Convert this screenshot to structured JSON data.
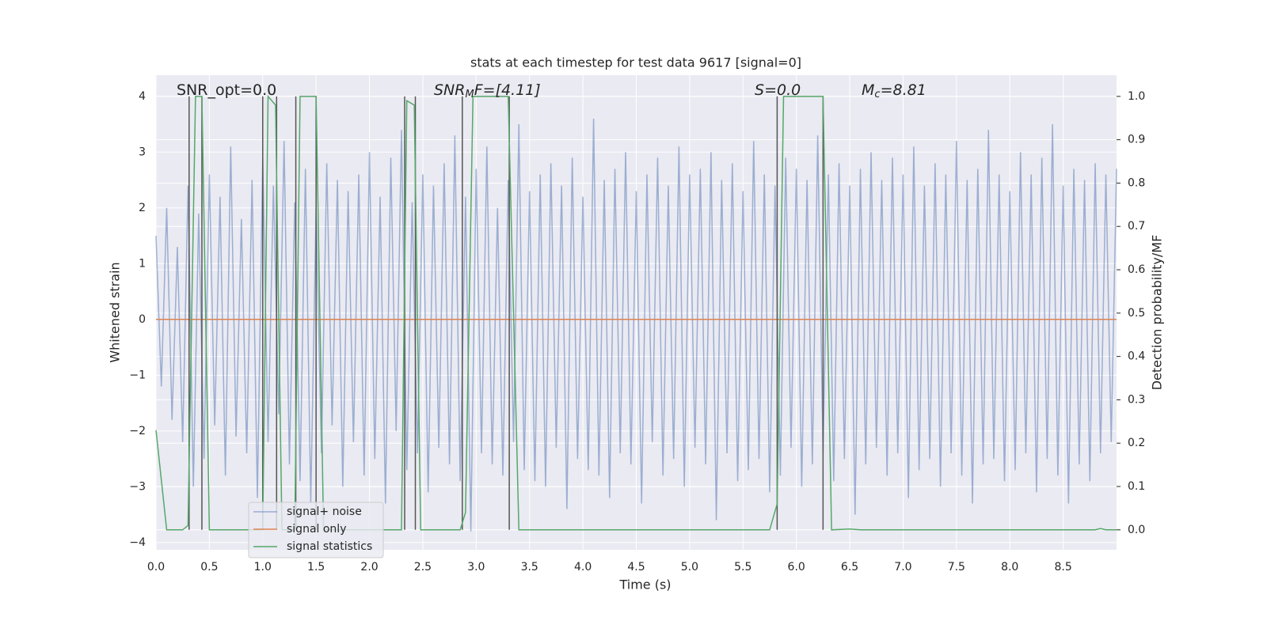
{
  "chart_data": {
    "type": "line",
    "title": "stats at each timestep for test data 9617 [signal=0]",
    "xlabel": "Time (s)",
    "ylabel": "Whitened strain",
    "y2label": "Detection probability/MF",
    "xlim": [
      0,
      9.0
    ],
    "ylim": [
      -4.13,
      4.38
    ],
    "y2lim": [
      -0.046,
      1.049
    ],
    "xticks": [
      {
        "value": 0,
        "label": "0.0"
      },
      {
        "value": 0.5,
        "label": "0.5"
      },
      {
        "value": 1,
        "label": "1.0"
      },
      {
        "value": 1.5,
        "label": "1.5"
      },
      {
        "value": 2,
        "label": "2.0"
      },
      {
        "value": 2.5,
        "label": "2.5"
      },
      {
        "value": 3,
        "label": "3.0"
      },
      {
        "value": 3.5,
        "label": "3.5"
      },
      {
        "value": 4,
        "label": "4.0"
      },
      {
        "value": 4.5,
        "label": "4.5"
      },
      {
        "value": 5,
        "label": "5.0"
      },
      {
        "value": 5.5,
        "label": "5.5"
      },
      {
        "value": 6,
        "label": "6.0"
      },
      {
        "value": 6.5,
        "label": "6.5"
      },
      {
        "value": 7,
        "label": "7.0"
      },
      {
        "value": 7.5,
        "label": "7.5"
      },
      {
        "value": 8,
        "label": "8.0"
      },
      {
        "value": 8.5,
        "label": "8.5"
      }
    ],
    "yticks": [
      {
        "value": -4,
        "label": "−4"
      },
      {
        "value": -3,
        "label": "−3"
      },
      {
        "value": -2,
        "label": "−2"
      },
      {
        "value": -1,
        "label": "−1"
      },
      0,
      1,
      2,
      3,
      4
    ],
    "y2ticks": [
      {
        "value": 0,
        "label": "0.0"
      },
      {
        "value": 0.1,
        "label": "0.1"
      },
      {
        "value": 0.2,
        "label": "0.2"
      },
      {
        "value": 0.3,
        "label": "0.3"
      },
      {
        "value": 0.4,
        "label": "0.4"
      },
      {
        "value": 0.5,
        "label": "0.5"
      },
      {
        "value": 0.6,
        "label": "0.6"
      },
      {
        "value": 0.7,
        "label": "0.7"
      },
      {
        "value": 0.8,
        "label": "0.8"
      },
      {
        "value": 0.9,
        "label": "0.9"
      },
      {
        "value": 1,
        "label": "1.0"
      }
    ],
    "grid": true,
    "series": [
      {
        "name": "signal+ noise",
        "color": "#4c72b0",
        "opacity": 0.5,
        "x": [
          0,
          0.05,
          0.1,
          0.15,
          0.2,
          0.25,
          0.3,
          0.35,
          0.4,
          0.45,
          0.5,
          0.55,
          0.6,
          0.65,
          0.7,
          0.75,
          0.8,
          0.85,
          0.9,
          0.95,
          1,
          1.05,
          1.1,
          1.15,
          1.2,
          1.25,
          1.3,
          1.35,
          1.4,
          1.45,
          1.5,
          1.55,
          1.6,
          1.65,
          1.7,
          1.75,
          1.8,
          1.85,
          1.9,
          1.95,
          2,
          2.05,
          2.1,
          2.15,
          2.2,
          2.25,
          2.3,
          2.35,
          2.4,
          2.45,
          2.5,
          2.55,
          2.6,
          2.65,
          2.7,
          2.75,
          2.8,
          2.85,
          2.9,
          2.95,
          3,
          3.05,
          3.1,
          3.15,
          3.2,
          3.25,
          3.3,
          3.35,
          3.4,
          3.45,
          3.5,
          3.55,
          3.6,
          3.65,
          3.7,
          3.75,
          3.8,
          3.85,
          3.9,
          3.95,
          4,
          4.05,
          4.1,
          4.15,
          4.2,
          4.25,
          4.3,
          4.35,
          4.4,
          4.45,
          4.5,
          4.55,
          4.6,
          4.65,
          4.7,
          4.75,
          4.8,
          4.85,
          4.9,
          4.95,
          5,
          5.05,
          5.1,
          5.15,
          5.2,
          5.25,
          5.3,
          5.35,
          5.4,
          5.45,
          5.5,
          5.55,
          5.6,
          5.65,
          5.7,
          5.75,
          5.8,
          5.85,
          5.9,
          5.95,
          6,
          6.05,
          6.1,
          6.15,
          6.2,
          6.25,
          6.3,
          6.35,
          6.4,
          6.45,
          6.5,
          6.55,
          6.6,
          6.65,
          6.7,
          6.75,
          6.8,
          6.85,
          6.9,
          6.95,
          7,
          7.05,
          7.1,
          7.15,
          7.2,
          7.25,
          7.3,
          7.35,
          7.4,
          7.45,
          7.5,
          7.55,
          7.6,
          7.65,
          7.7,
          7.75,
          7.8,
          7.85,
          7.9,
          7.95,
          8,
          8.05,
          8.1,
          8.15,
          8.2,
          8.25,
          8.3,
          8.35,
          8.4,
          8.45,
          8.5,
          8.55,
          8.6,
          8.65,
          8.7,
          8.75,
          8.8,
          8.85,
          8.9,
          8.95,
          9.0
        ],
        "values": [
          1.5,
          -1.2,
          2.0,
          -1.8,
          1.3,
          -2.2,
          2.4,
          -3.0,
          1.9,
          -2.5,
          2.6,
          -1.9,
          2.2,
          -2.8,
          3.1,
          -2.1,
          1.8,
          -2.4,
          2.5,
          -3.2,
          2.9,
          -2.2,
          2.4,
          -1.7,
          3.2,
          -2.6,
          2.1,
          -2.9,
          2.7,
          -3.3,
          2.0,
          -2.4,
          2.8,
          -1.9,
          2.5,
          -3.0,
          2.3,
          -2.2,
          2.6,
          -2.8,
          3.0,
          -2.5,
          2.2,
          -3.3,
          2.9,
          -2.0,
          3.4,
          -2.7,
          2.1,
          -2.4,
          2.6,
          -3.1,
          2.4,
          -2.3,
          2.8,
          -2.6,
          3.3,
          -2.9,
          2.2,
          -3.8,
          2.7,
          -2.4,
          3.1,
          -2.6,
          2.0,
          -2.8,
          2.5,
          -2.2,
          3.5,
          -2.7,
          2.3,
          -2.9,
          2.6,
          -3.0,
          2.8,
          -2.3,
          2.4,
          -3.4,
          2.9,
          -2.5,
          2.2,
          -2.7,
          3.6,
          -2.8,
          2.5,
          -3.2,
          2.7,
          -2.4,
          3.0,
          -2.6,
          2.3,
          -3.3,
          2.6,
          -2.2,
          2.9,
          -2.8,
          2.4,
          -2.5,
          3.1,
          -3.0,
          2.6,
          -2.3,
          2.7,
          -2.6,
          3.0,
          -3.6,
          2.5,
          -2.4,
          2.8,
          -2.9,
          2.3,
          -2.7,
          3.2,
          -2.5,
          2.6,
          -3.1,
          2.4,
          -2.8,
          2.9,
          -2.3,
          2.7,
          -3.0,
          2.5,
          -2.6,
          3.3,
          -2.4,
          2.6,
          -2.9,
          2.8,
          -2.5,
          2.4,
          -3.5,
          2.7,
          -2.6,
          3.0,
          -2.3,
          2.5,
          -2.8,
          2.9,
          -2.4,
          2.6,
          -3.2,
          3.1,
          -2.7,
          2.4,
          -2.5,
          2.8,
          -3.0,
          2.6,
          -2.4,
          3.2,
          -2.8,
          2.5,
          -3.3,
          2.7,
          -2.6,
          3.4,
          -2.5,
          2.6,
          -2.9,
          2.3,
          -2.7,
          3.0,
          -2.4,
          2.6,
          -3.1,
          2.9,
          -2.5,
          3.5,
          -2.8,
          2.4,
          -3.3,
          2.7,
          -2.6,
          2.5,
          -2.9,
          2.8,
          -2.4,
          2.6,
          -2.2,
          2.7
        ]
      },
      {
        "name": "signal only",
        "color": "#dd8452",
        "opacity": 1,
        "x": [
          0,
          9.0
        ],
        "values": [
          0,
          0
        ]
      },
      {
        "name": "signal statistics",
        "color": "#55a868",
        "opacity": 1,
        "axis": "y2",
        "x": [
          0,
          0.1,
          0.25,
          0.3,
          0.37,
          0.43,
          0.5,
          0.6,
          1.0,
          1.05,
          1.12,
          1.18,
          1.3,
          1.35,
          1.5,
          1.57,
          2.3,
          2.35,
          2.42,
          2.48,
          2.85,
          2.9,
          2.97,
          3.3,
          3.4,
          3.7,
          5.75,
          5.82,
          5.88,
          6.25,
          6.33,
          6.5,
          6.6,
          8.8,
          8.85,
          8.9,
          9.0
        ],
        "values": [
          0.23,
          0,
          0,
          0.01,
          1,
          1,
          0,
          0,
          0,
          1,
          0.98,
          0,
          0,
          1,
          1,
          0,
          0,
          0.99,
          0.98,
          0,
          0,
          0.04,
          1,
          1,
          0,
          0,
          0,
          0.06,
          1,
          1,
          0,
          0.002,
          0,
          0,
          0.003,
          0,
          0
        ]
      }
    ],
    "vlines": {
      "color": "#555555",
      "axis": "y2",
      "x": [
        0.31,
        0.43,
        1.0,
        1.13,
        1.31,
        1.5,
        2.33,
        2.43,
        2.87,
        3.31,
        5.82,
        6.25
      ],
      "ymin": 0,
      "ymax": 1
    },
    "annotations": [
      {
        "tail": "SNR_opt=0.0"
      },
      {
        "italic": "SNR",
        "sub": "M",
        "tail": "F=[4.11]"
      },
      {
        "italic": "S",
        "tail": "=0.0"
      },
      {
        "italic": "M",
        "sub": "c",
        "tail": "=8.81"
      }
    ],
    "legend": "lower left"
  }
}
